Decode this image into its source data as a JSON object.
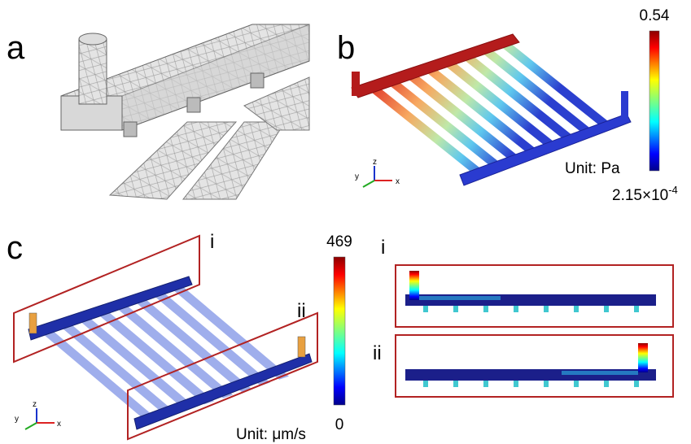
{
  "panels": {
    "a": {
      "label": "a"
    },
    "b": {
      "label": "b",
      "colorbar_max": 0.54,
      "colorbar_min_base": "2.15×10",
      "colorbar_min_exp": "-4",
      "unit": "Unit: Pa",
      "axes": {
        "z": "z",
        "y": "y",
        "x": "x"
      }
    },
    "c": {
      "label": "c",
      "colorbar_max": 469,
      "colorbar_min": 0,
      "unit": "Unit: μm/s",
      "region_labels": [
        "i",
        "ii"
      ],
      "axes": {
        "z": "z",
        "y": "y",
        "x": "x"
      }
    },
    "insets": {
      "labels": [
        "i",
        "ii"
      ]
    }
  }
}
